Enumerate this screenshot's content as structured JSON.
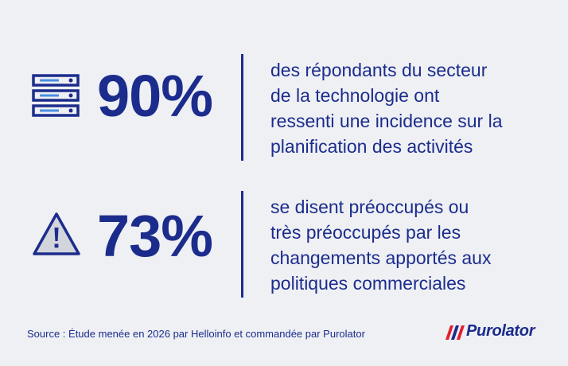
{
  "stats": [
    {
      "icon": "server-icon",
      "percent": "90%",
      "lines": [
        "des répondants du secteur",
        "de la technologie ont",
        "ressenti une incidence sur la",
        "planification des activités"
      ]
    },
    {
      "icon": "warning-icon",
      "percent": "73%",
      "lines": [
        "se disent préoccupés ou",
        "très préoccupés par les",
        "changements apportés aux",
        "politiques commerciales"
      ]
    }
  ],
  "source": "Source : Étude menée en 2026 par Helloinfo et commandée par Purolator",
  "logo": {
    "text": "Purolator",
    "colors": {
      "blue": "#1c2c8c",
      "red": "#e0212e"
    }
  },
  "colors": {
    "primary": "#1c2c8c",
    "background": "#eef0f4"
  }
}
